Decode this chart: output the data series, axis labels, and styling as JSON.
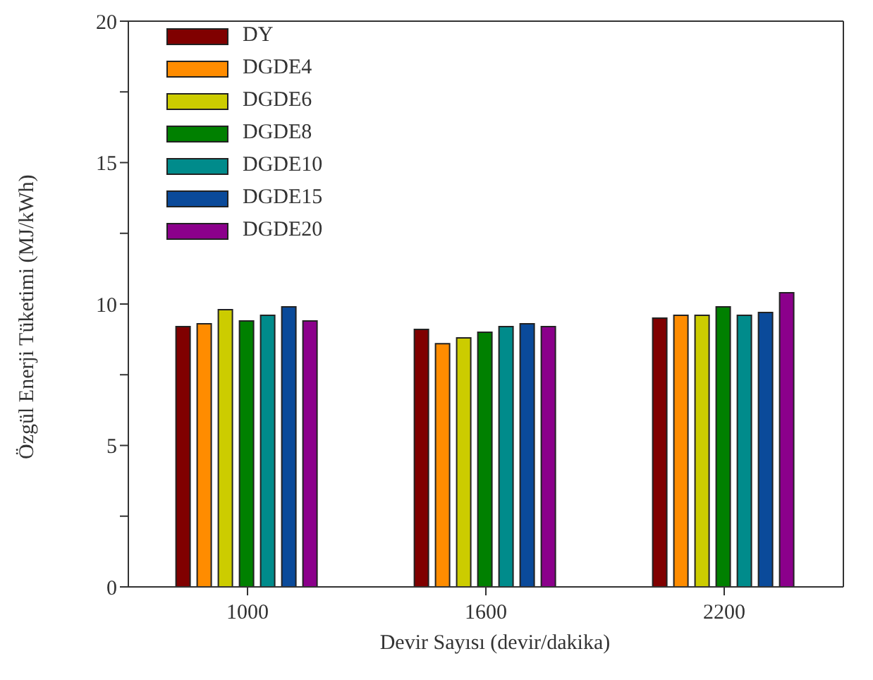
{
  "chart_data": {
    "type": "bar",
    "xlabel": "Devir Sayısı (devir/dakika)",
    "ylabel": "Özgül Enerji Tüketimi (MJ/kWh)",
    "categories": [
      "1000",
      "1600",
      "2200"
    ],
    "series": [
      {
        "name": "DY",
        "color": "#800000",
        "values": [
          9.2,
          9.1,
          9.5
        ]
      },
      {
        "name": "DGDE4",
        "color": "#ff8c00",
        "values": [
          9.3,
          8.6,
          9.6
        ]
      },
      {
        "name": "DGDE6",
        "color": "#cccc00",
        "values": [
          9.8,
          8.8,
          9.6
        ]
      },
      {
        "name": "DGDE8",
        "color": "#008000",
        "values": [
          9.4,
          9.0,
          9.9
        ]
      },
      {
        "name": "DGDE10",
        "color": "#008b8b",
        "values": [
          9.6,
          9.2,
          9.6
        ]
      },
      {
        "name": "DGDE15",
        "color": "#0a4a9a",
        "values": [
          9.9,
          9.3,
          9.7
        ]
      },
      {
        "name": "DGDE20",
        "color": "#8b008b",
        "values": [
          9.4,
          9.2,
          10.4
        ]
      }
    ],
    "ylim": [
      0,
      20
    ],
    "yticks": [
      0,
      {
        "value": 2.5,
        "label": null
      },
      5,
      {
        "value": 7.5,
        "label": null
      },
      10,
      {
        "value": 12.5,
        "label": null
      },
      15,
      {
        "value": 17.5,
        "label": null
      },
      20
    ],
    "grid": false,
    "legend": "top left"
  }
}
